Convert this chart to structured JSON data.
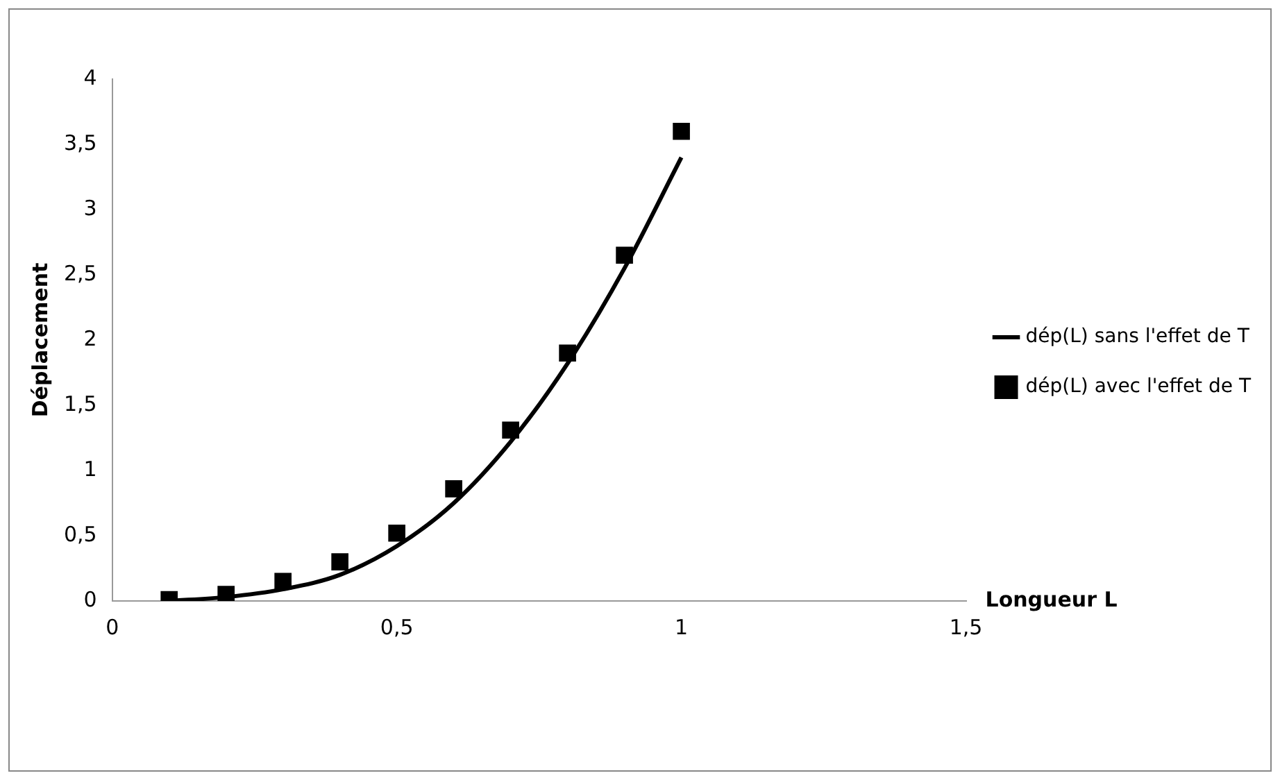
{
  "chart_data": {
    "type": "scatter",
    "xlabel": "Longueur L",
    "ylabel": "Déplacement",
    "xlim": [
      0,
      1.5
    ],
    "xticks": [
      {
        "value": 0,
        "label": "0"
      },
      {
        "value": 0.5,
        "label": "0,5"
      },
      {
        "value": 1,
        "label": "1"
      },
      {
        "value": 1.5,
        "label": "1,5"
      }
    ],
    "ylim": [
      0,
      4
    ],
    "yticks": [
      {
        "value": 0,
        "label": "0"
      },
      {
        "value": 0.5,
        "label": "0,5"
      },
      {
        "value": 1,
        "label": "1"
      },
      {
        "value": 1.5,
        "label": "1,5"
      },
      {
        "value": 2,
        "label": "2"
      },
      {
        "value": 2.5,
        "label": "2,5"
      },
      {
        "value": 3,
        "label": "3"
      },
      {
        "value": 3.5,
        "label": "3,5"
      },
      {
        "value": 4,
        "label": "4"
      }
    ],
    "grid": false,
    "legend": "right",
    "series": [
      {
        "name": "dép(L) sans l'effet de T",
        "type": "line",
        "color": "#000000",
        "marker": "none",
        "line_style": "solid",
        "x": [
          0.1,
          0.2,
          0.3,
          0.4,
          0.5,
          0.6,
          0.7,
          0.8,
          0.9,
          1.0
        ],
        "values": [
          0.0,
          0.03,
          0.09,
          0.2,
          0.42,
          0.75,
          1.22,
          1.82,
          2.55,
          3.4
        ]
      },
      {
        "name": "dép(L) avec l'effet de T",
        "type": "scatter",
        "color": "#000000",
        "marker": "square",
        "x": [
          0.1,
          0.2,
          0.3,
          0.4,
          0.5,
          0.6,
          0.7,
          0.8,
          0.9,
          1.0
        ],
        "values": [
          0.01,
          0.05,
          0.15,
          0.3,
          0.52,
          0.86,
          1.31,
          1.9,
          2.65,
          3.6
        ]
      }
    ]
  }
}
